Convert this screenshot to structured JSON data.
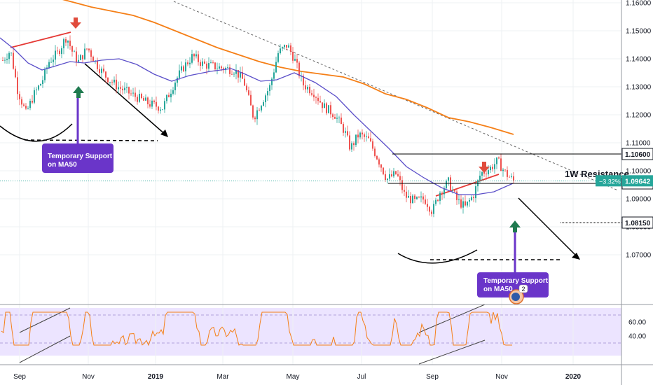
{
  "chart_data": {
    "type": "candlestick",
    "price_panel": {
      "ylim": [
        1.067,
        1.1625
      ],
      "yticks": [
        "1.16000",
        "1.15000",
        "1.14000",
        "1.13000",
        "1.12000",
        "1.11000",
        "1.10000",
        "1.09000",
        "1.08000",
        "1.07000"
      ],
      "levels": [
        {
          "label": "1.10600",
          "value": 1.106,
          "style": "solid"
        },
        {
          "label": "1.09550",
          "value": 1.0955,
          "style": "solid"
        },
        {
          "label": "1.08150",
          "value": 1.0815,
          "style": "dashed"
        }
      ],
      "current_price": {
        "label": "1.09642",
        "change_label": "−3.32%",
        "value": 1.09642,
        "color": "#26a69a"
      },
      "resistance_label": "1W Resistance",
      "annotations": [
        {
          "text": [
            "Temporary Support",
            "on MA50"
          ],
          "color": "#6a35c9"
        },
        {
          "text": [
            "Temporary Support",
            "on MA50"
          ],
          "color": "#6a35c9"
        }
      ],
      "badge": "2",
      "series": [
        {
          "name": "MA50",
          "color": "#5b4fc9"
        },
        {
          "name": "MA200",
          "color": "#f57f17"
        }
      ]
    },
    "rsi_panel": {
      "ylim": [
        24,
        78
      ],
      "yticks": [
        "60.00",
        "40.00"
      ],
      "band": [
        30,
        70
      ],
      "line_color": "#f57f17"
    },
    "x_axis": {
      "labels": [
        "Sep",
        "Nov",
        "2019",
        "Mar",
        "May",
        "Jul",
        "Sep",
        "Nov",
        "2020"
      ]
    },
    "colors": {
      "up": "#26a69a",
      "down": "#ef5350",
      "ma50": "#5b4fc9",
      "ma200": "#f57f17",
      "annotation": "#6a35c9",
      "arrow_red": "#e04b3c",
      "arrow_green": "#1f7a4f"
    }
  }
}
